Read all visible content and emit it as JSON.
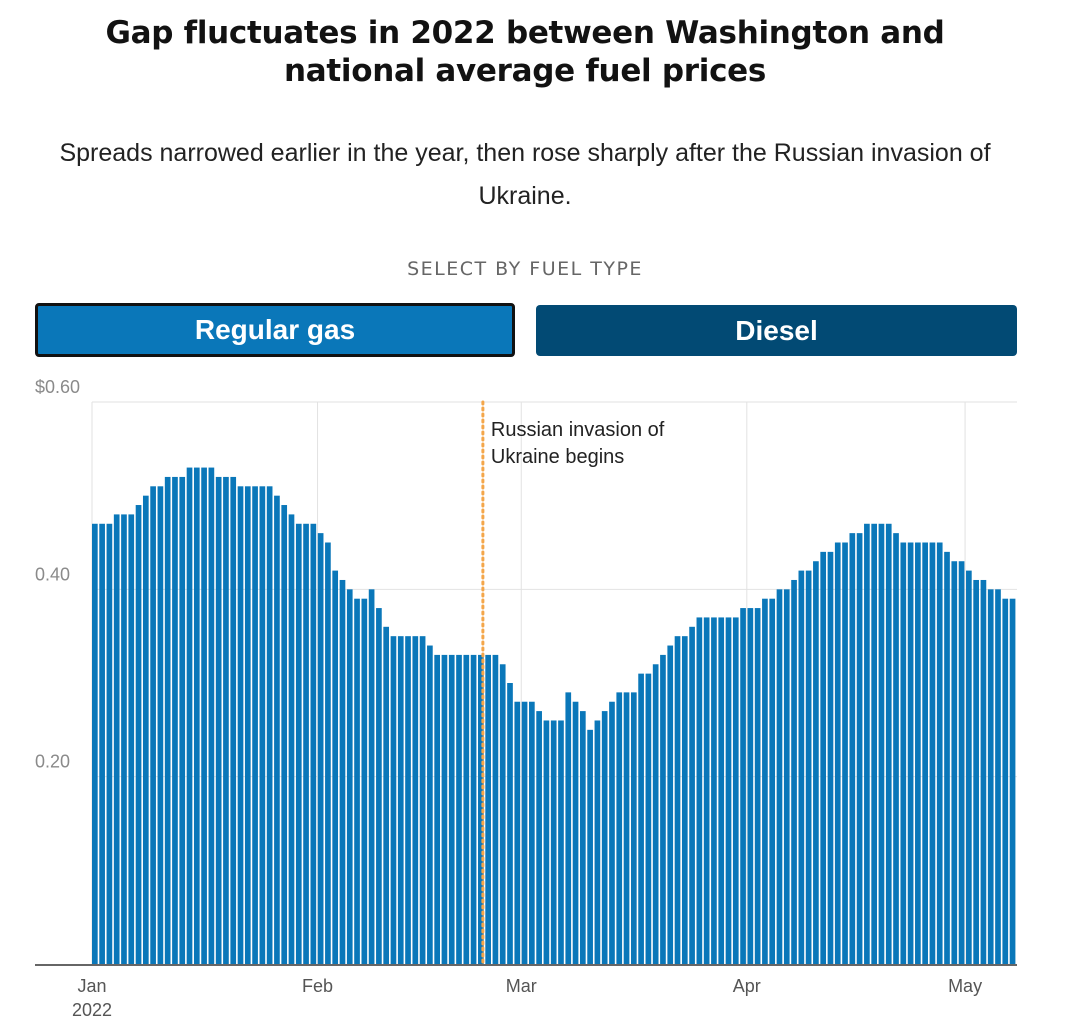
{
  "title": "Gap fluctuates in 2022 between Washington and national average fuel prices",
  "subtitle": "Spreads narrowed earlier in the year, then rose sharply after the Russian invasion of Ukraine.",
  "selector": {
    "label": "SELECT BY FUEL TYPE",
    "options": [
      {
        "label": "Regular gas",
        "selected": true
      },
      {
        "label": "Diesel",
        "selected": false
      }
    ]
  },
  "colors": {
    "bar": "#0a77b9",
    "selected_button": "#0a77b9",
    "unselected_button": "#024a74",
    "annotation_line": "#f4a64a"
  },
  "chart_data": {
    "type": "bar",
    "title": "",
    "xlabel": "",
    "ylabel": "",
    "ylim": [
      0,
      0.6
    ],
    "y_ticks": [
      {
        "value": 0.2,
        "label": "0.20"
      },
      {
        "value": 0.4,
        "label": "0.40"
      },
      {
        "value": 0.6,
        "label": "$0.60"
      }
    ],
    "x_start": "2022-01-01",
    "x_end": "2022-05-08",
    "x_ticks": [
      {
        "date": "2022-01-01",
        "label": "Jan",
        "sublabel": "2022"
      },
      {
        "date": "2022-02-01",
        "label": "Feb",
        "sublabel": ""
      },
      {
        "date": "2022-03-01",
        "label": "Mar",
        "sublabel": ""
      },
      {
        "date": "2022-04-01",
        "label": "Apr",
        "sublabel": ""
      },
      {
        "date": "2022-05-01",
        "label": "May",
        "sublabel": ""
      }
    ],
    "annotation": {
      "date": "2022-02-24",
      "lines": [
        "Russian invasion of",
        "Ukraine begins"
      ]
    },
    "grid": true,
    "series": [
      {
        "values": [
          0.47,
          0.47,
          0.47,
          0.48,
          0.48,
          0.48,
          0.49,
          0.5,
          0.51,
          0.51,
          0.52,
          0.52,
          0.52,
          0.53,
          0.53,
          0.53,
          0.53,
          0.52,
          0.52,
          0.52,
          0.51,
          0.51,
          0.51,
          0.51,
          0.51,
          0.5,
          0.49,
          0.48,
          0.47,
          0.47,
          0.47,
          0.46,
          0.45,
          0.42,
          0.41,
          0.4,
          0.39,
          0.39,
          0.4,
          0.38,
          0.36,
          0.35,
          0.35,
          0.35,
          0.35,
          0.35,
          0.34,
          0.33,
          0.33,
          0.33,
          0.33,
          0.33,
          0.33,
          0.33,
          0.33,
          0.33,
          0.32,
          0.3,
          0.28,
          0.28,
          0.28,
          0.27,
          0.26,
          0.26,
          0.26,
          0.29,
          0.28,
          0.27,
          0.25,
          0.26,
          0.27,
          0.28,
          0.29,
          0.29,
          0.29,
          0.31,
          0.31,
          0.32,
          0.33,
          0.34,
          0.35,
          0.35,
          0.36,
          0.37,
          0.37,
          0.37,
          0.37,
          0.37,
          0.37,
          0.38,
          0.38,
          0.38,
          0.39,
          0.39,
          0.4,
          0.4,
          0.41,
          0.42,
          0.42,
          0.43,
          0.44,
          0.44,
          0.45,
          0.45,
          0.46,
          0.46,
          0.47,
          0.47,
          0.47,
          0.47,
          0.46,
          0.45,
          0.45,
          0.45,
          0.45,
          0.45,
          0.45,
          0.44,
          0.43,
          0.43,
          0.42,
          0.41,
          0.41,
          0.4,
          0.4,
          0.39,
          0.39
        ]
      }
    ]
  }
}
